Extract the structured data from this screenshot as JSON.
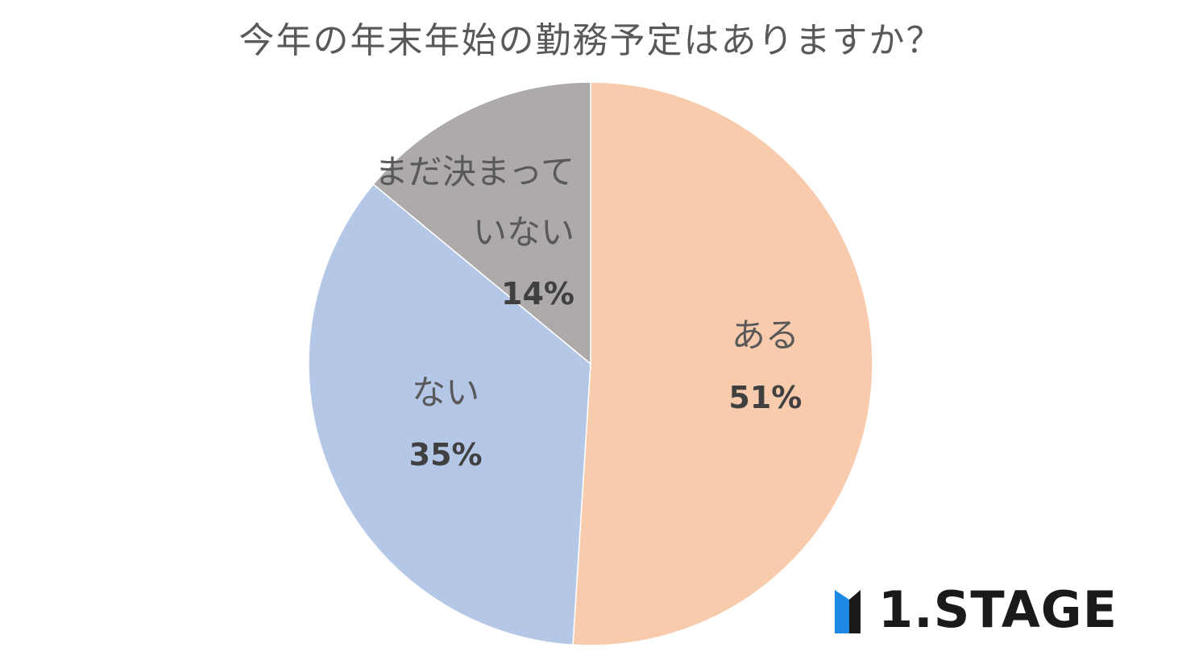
{
  "chart_data": {
    "type": "pie",
    "title": "今年の年末年始の勤務予定はありますか？",
    "start_angle_deg": 0,
    "direction": "clockwise",
    "slices": [
      {
        "label_lines": [
          "ある"
        ],
        "value": 51,
        "value_label": "51%",
        "color": "#F8CBAD"
      },
      {
        "label_lines": [
          "ない"
        ],
        "value": 35,
        "value_label": "35%",
        "color": "#B4C7E7"
      },
      {
        "label_lines": [
          "まだ決まって",
          "いない"
        ],
        "value": 14,
        "value_label": "14%",
        "color": "#AEAAAA"
      }
    ]
  },
  "logo": {
    "text": "1.STAGE",
    "icon": "m-stage-logo-mark",
    "accent_color": "#1E88E5",
    "text_color": "#1a1a1a"
  }
}
